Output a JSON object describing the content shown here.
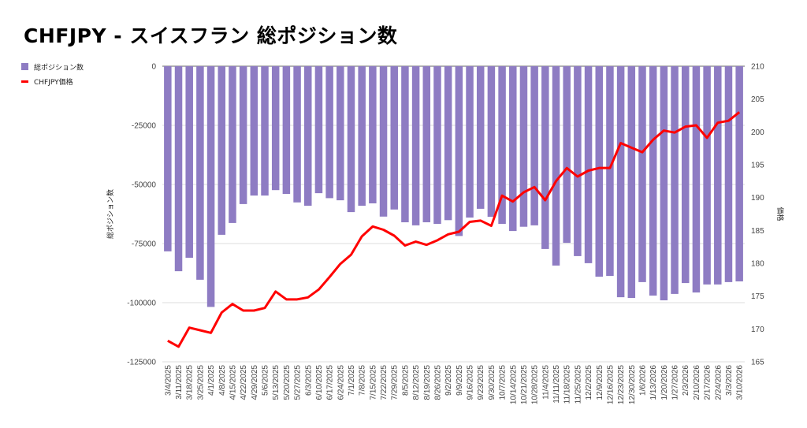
{
  "title": "CHFJPY - スイスフラン 総ポジション数",
  "chart_data": {
    "type": "bar+line",
    "title": "CHFJPY - スイスフラン 総ポジション数",
    "legend_position": "top-left",
    "ylabel_left": "総ポジション数",
    "ylabel_right": "価格",
    "ylim_left": [
      -125000,
      0
    ],
    "yticks_left": [
      "0",
      "-25000",
      "-50000",
      "-75000",
      "-100000",
      "-125000"
    ],
    "ylim_right": [
      165,
      210
    ],
    "yticks_right": [
      "210",
      "205",
      "200",
      "195",
      "190",
      "185",
      "180",
      "175",
      "170",
      "165"
    ],
    "grid": true,
    "colors": {
      "bars": "#8e7cc3",
      "line": "#ff0000"
    },
    "categories": [
      "3/4/2025",
      "3/11/2025",
      "3/18/2025",
      "3/25/2025",
      "4/1/2025",
      "4/8/2025",
      "4/15/2025",
      "4/22/2025",
      "4/29/2025",
      "5/6/2025",
      "5/13/2025",
      "5/20/2025",
      "5/27/2025",
      "6/3/2025",
      "6/10/2025",
      "6/17/2025",
      "6/24/2025",
      "7/1/2025",
      "7/8/2025",
      "7/15/2025",
      "7/22/2025",
      "7/29/2025",
      "8/5/2025",
      "8/12/2025",
      "8/19/2025",
      "8/26/2025",
      "9/2/2025",
      "9/9/2025",
      "9/16/2025",
      "9/23/2025",
      "9/30/2025",
      "10/7/2025",
      "10/14/2025",
      "10/21/2025",
      "10/28/2025",
      "11/4/2025",
      "11/11/2025",
      "11/18/2025",
      "11/25/2025",
      "12/2/2025",
      "12/9/2025",
      "12/16/2025",
      "12/23/2025",
      "12/30/2025",
      "1/6/2026",
      "1/13/2026",
      "1/20/2026",
      "1/27/2026",
      "2/3/2026",
      "2/10/2026",
      "2/17/2026",
      "2/24/2026",
      "3/3/2026",
      "3/10/2026"
    ],
    "series": [
      {
        "name": "総ポジション数",
        "type": "bar",
        "axis": "left",
        "values": [
          -78300,
          -86700,
          -81000,
          -90300,
          -101800,
          -71300,
          -66300,
          -58300,
          -54700,
          -54700,
          -52400,
          -54000,
          -57600,
          -59000,
          -53700,
          -55800,
          -56700,
          -61700,
          -59000,
          -58000,
          -63600,
          -60600,
          -66000,
          -67300,
          -66000,
          -66700,
          -65100,
          -71800,
          -64000,
          -60300,
          -63700,
          -66700,
          -69700,
          -67900,
          -67300,
          -77300,
          -84300,
          -74700,
          -80300,
          -83300,
          -89000,
          -88700,
          -97700,
          -98000,
          -91300,
          -97000,
          -99000,
          -96300,
          -91700,
          -95700,
          -92300,
          -92300,
          -91300,
          -91000
        ]
      },
      {
        "name": "CHFJPY価格",
        "type": "line",
        "axis": "right",
        "values": [
          168.2,
          167.3,
          170.2,
          169.8,
          169.4,
          172.5,
          173.8,
          172.8,
          172.8,
          173.2,
          175.7,
          174.5,
          174.5,
          174.8,
          176.0,
          177.9,
          179.9,
          181.3,
          184.1,
          185.6,
          185.1,
          184.2,
          182.7,
          183.3,
          182.8,
          183.5,
          184.4,
          184.8,
          186.3,
          186.5,
          185.7,
          190.3,
          189.4,
          190.8,
          191.6,
          189.6,
          192.5,
          194.5,
          193.2,
          194.1,
          194.5,
          194.5,
          198.3,
          197.6,
          196.9,
          198.8,
          200.2,
          199.9,
          200.8,
          201.0,
          199.1,
          201.4,
          201.7,
          203.0
        ]
      }
    ]
  }
}
